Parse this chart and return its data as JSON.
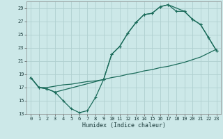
{
  "xlabel": "Humidex (Indice chaleur)",
  "bg_color": "#cce8e8",
  "grid_color": "#b0d0d0",
  "line_color": "#1a6b5a",
  "xlim": [
    -0.5,
    23.5
  ],
  "ylim": [
    13,
    30
  ],
  "xticks": [
    0,
    1,
    2,
    3,
    4,
    5,
    6,
    7,
    8,
    9,
    10,
    11,
    12,
    13,
    14,
    15,
    16,
    17,
    18,
    19,
    20,
    21,
    22,
    23
  ],
  "yticks": [
    13,
    15,
    17,
    19,
    21,
    23,
    25,
    27,
    29
  ],
  "line1_x": [
    0,
    1,
    2,
    3,
    4,
    5,
    6,
    7,
    8,
    9,
    10,
    11,
    12,
    13,
    14,
    15,
    16,
    17,
    18,
    19,
    20,
    21,
    22,
    23
  ],
  "line1_y": [
    18.5,
    17.0,
    16.8,
    16.3,
    15.0,
    13.8,
    13.2,
    13.5,
    15.5,
    18.2,
    22.0,
    23.2,
    25.2,
    26.8,
    28.0,
    28.2,
    29.2,
    29.5,
    28.5,
    28.5,
    27.3,
    26.5,
    24.5,
    22.5
  ],
  "line2_x": [
    0,
    1,
    2,
    3,
    4,
    5,
    6,
    7,
    8,
    9,
    10,
    11,
    12,
    13,
    14,
    15,
    16,
    17,
    18,
    19,
    20,
    21,
    22,
    23
  ],
  "line2_y": [
    18.5,
    17.0,
    17.0,
    17.2,
    17.4,
    17.5,
    17.7,
    17.9,
    18.0,
    18.2,
    18.5,
    18.7,
    19.0,
    19.2,
    19.5,
    19.7,
    20.0,
    20.2,
    20.5,
    20.8,
    21.2,
    21.6,
    22.2,
    22.8
  ],
  "line3_x": [
    0,
    1,
    2,
    3,
    9,
    10,
    11,
    12,
    13,
    14,
    15,
    16,
    17,
    19,
    20,
    21,
    22,
    23
  ],
  "line3_y": [
    18.5,
    17.0,
    16.8,
    16.3,
    18.2,
    22.0,
    23.2,
    25.2,
    26.8,
    28.0,
    28.2,
    29.2,
    29.5,
    28.5,
    27.3,
    26.5,
    24.5,
    22.5
  ]
}
